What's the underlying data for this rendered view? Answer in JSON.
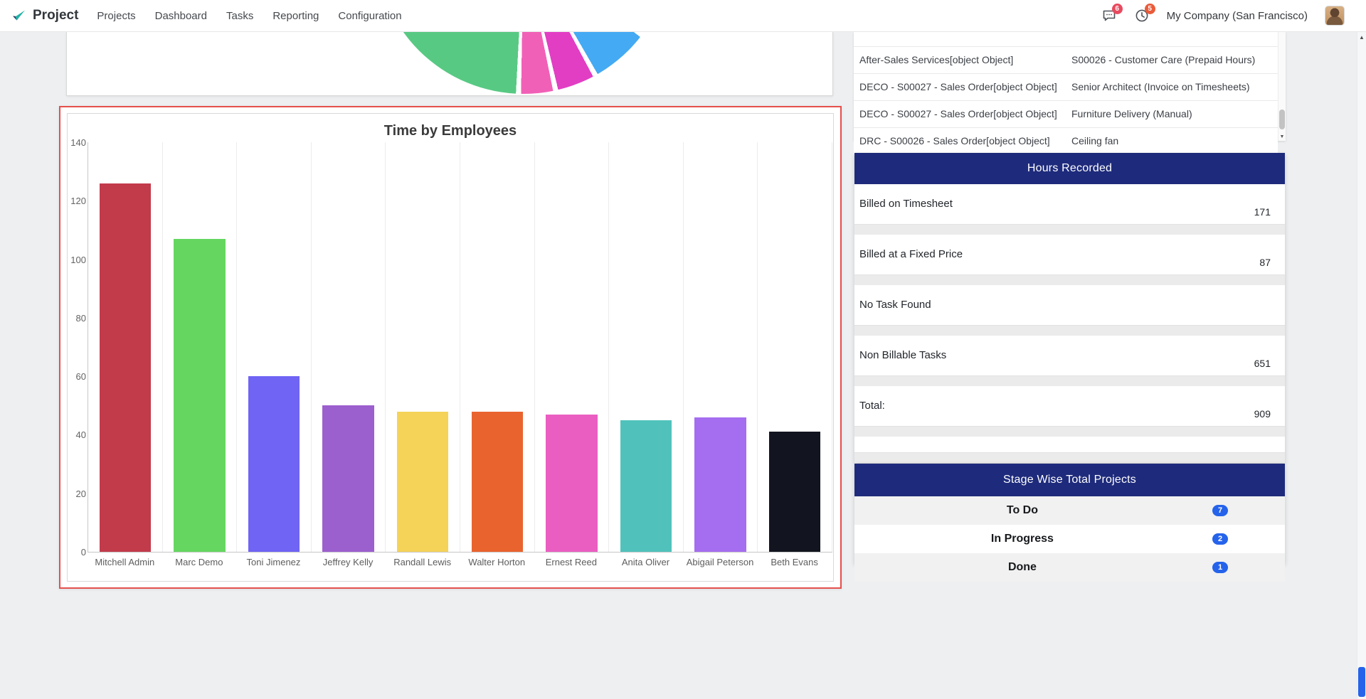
{
  "colors": {
    "panel_header_navy": "#1e2b7c",
    "badge_blue": "#2563eb",
    "selection_red": "#e5504d",
    "messages_badge_red": "#e84a5f",
    "activities_badge_red": "#ea5b3a",
    "scroll_thumb_blue": "#2563eb"
  },
  "nav": {
    "app_name": "Project",
    "items": [
      "Projects",
      "Dashboard",
      "Tasks",
      "Reporting",
      "Configuration"
    ],
    "messages_badge": "6",
    "activities_badge": "5",
    "company": "My Company (San Francisco)"
  },
  "sales_table": {
    "rows": [
      {
        "name": "After-Sales Services[object Object]",
        "detail": "S00026 - Customer Care (Prepaid Hours)"
      },
      {
        "name": "DECO - S00027 - Sales Order[object Object]",
        "detail": "Senior Architect (Invoice on Timesheets)"
      },
      {
        "name": "DECO - S00027 - Sales Order[object Object]",
        "detail": "Furniture Delivery (Manual)"
      },
      {
        "name": "DRC - S00026 - Sales Order[object Object]",
        "detail": "Ceiling fan"
      }
    ]
  },
  "hours_recorded": {
    "title": "Hours Recorded",
    "rows": [
      {
        "label": "Billed on Timesheet",
        "value": "171"
      },
      {
        "label": "Billed at a Fixed Price",
        "value": "87"
      },
      {
        "label": "No Task Found",
        "value": ""
      },
      {
        "label": "Non Billable Tasks",
        "value": "651"
      },
      {
        "label": "Total:",
        "value": "909"
      }
    ]
  },
  "stage_projects": {
    "title": "Stage Wise Total Projects",
    "rows": [
      {
        "label": "To Do",
        "count": "7"
      },
      {
        "label": "In Progress",
        "count": "2"
      },
      {
        "label": "Done",
        "count": "1",
        "clipped": true
      }
    ]
  },
  "chart_data": [
    {
      "type": "bar",
      "title": "Time by Employees",
      "categories": [
        "Mitchell Admin",
        "Marc Demo",
        "Toni Jimenez",
        "Jeffrey Kelly",
        "Randall Lewis",
        "Walter Horton",
        "Ernest Reed",
        "Anita Oliver",
        "Abigail Peterson",
        "Beth Evans"
      ],
      "values": [
        126,
        107,
        60,
        50,
        48,
        48,
        47,
        45,
        46,
        41
      ],
      "xlabel": "",
      "ylabel": "",
      "ylim": [
        0,
        140
      ],
      "ytick_step": 20,
      "grid": "vertical-only",
      "legend": "none",
      "bar_colors": [
        "#c23b4b",
        "#65d761",
        "#6f64f4",
        "#9c5fce",
        "#f5d359",
        "#e9632e",
        "#ea5ec1",
        "#50c2bb",
        "#a56df0",
        "#12151f"
      ]
    },
    {
      "type": "pie",
      "note": "only bottom arc visible, chart scrolled above fold",
      "slices": [
        {
          "name": "blue-slice",
          "color": "#44aaf3",
          "start_deg": 128,
          "end_deg": 150
        },
        {
          "name": "magenta-slice",
          "color": "#e23ec4",
          "start_deg": 152,
          "end_deg": 166.5
        },
        {
          "name": "pink-slice",
          "color": "#f160b7",
          "start_deg": 168.5,
          "end_deg": 181
        },
        {
          "name": "green-slice",
          "color": "#58c983",
          "start_deg": 183,
          "end_deg": 262
        }
      ]
    }
  ]
}
